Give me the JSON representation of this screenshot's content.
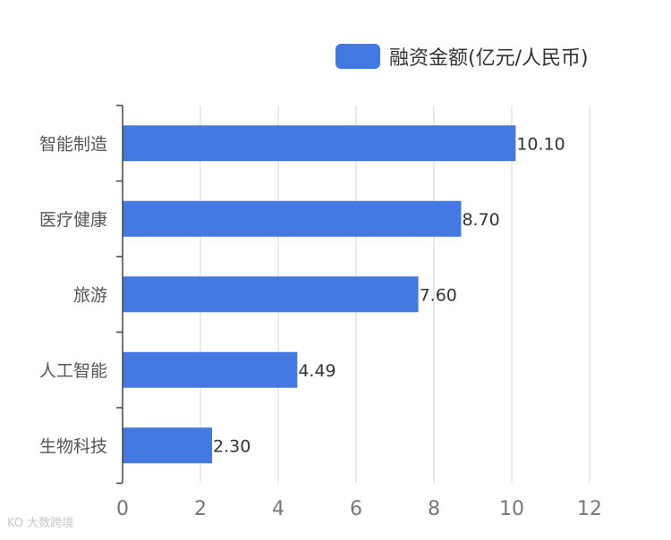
{
  "chart_data": {
    "type": "bar",
    "orientation": "horizontal",
    "categories": [
      "智能制造",
      "医疗健康",
      "旅游",
      "人工智能",
      "生物科技"
    ],
    "series": [
      {
        "name": "融资金额(亿元/人民币)",
        "values": [
          10.1,
          8.7,
          7.6,
          4.49,
          2.3
        ],
        "value_labels": [
          "10.10",
          "8.70",
          "7.60",
          "4.49",
          "2.30"
        ]
      }
    ],
    "xlim": [
      0,
      12
    ],
    "xticks": [
      "0",
      "2",
      "4",
      "6",
      "8",
      "10",
      "12"
    ],
    "grid": true,
    "legend_position": "top-right",
    "bar_color": "#4479e1"
  },
  "watermark": "大数跨境"
}
